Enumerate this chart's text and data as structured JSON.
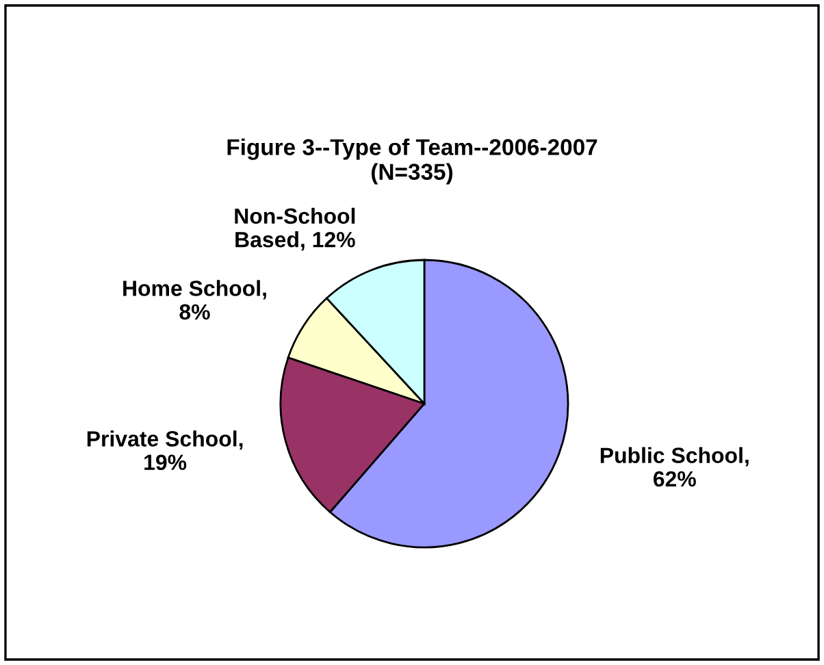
{
  "chart_data": {
    "type": "pie",
    "title": "Figure 3--Type of Team--2006-2007\n(N=335)",
    "categories": [
      "Public School,\n62%",
      "Private School,\n19%",
      "Home School,\n8%",
      "Non-School\nBased, 12%"
    ],
    "values": [
      62,
      19,
      8,
      12
    ],
    "colors": [
      "#9999ff",
      "#993366",
      "#ffffcc",
      "#ccffff"
    ],
    "legend": false
  }
}
